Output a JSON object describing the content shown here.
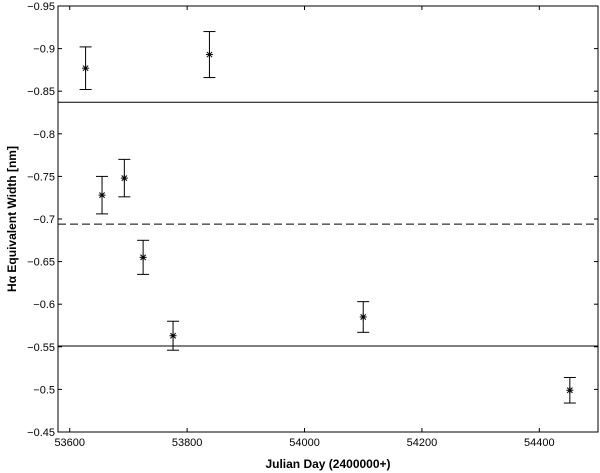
{
  "chart_data": {
    "type": "scatter",
    "xlabel": "Julian Day (2400000+)",
    "ylabel": "Hα Equivalent Width [nm]",
    "xlim": [
      53580,
      54500
    ],
    "ylim": [
      -0.45,
      -0.95
    ],
    "y_reversed": true,
    "grid": false,
    "x_ticks": [
      53600,
      53800,
      54000,
      54200,
      54400
    ],
    "x_tick_labels": [
      "53600",
      "53800",
      "54000",
      "54200",
      "54400"
    ],
    "y_ticks": [
      -0.95,
      -0.9,
      -0.85,
      -0.8,
      -0.75,
      -0.7,
      -0.65,
      -0.6,
      -0.55,
      -0.5,
      -0.45
    ],
    "y_tick_labels": [
      "−0.95",
      "−0.9",
      "−0.85",
      "−0.8",
      "−0.75",
      "−0.7",
      "−0.65",
      "−0.6",
      "−0.55",
      "−0.5",
      "−0.45"
    ],
    "marker": "asterisk",
    "series": [
      {
        "x": [
          53627,
          53655,
          53693,
          53725,
          53776,
          53838,
          54100,
          54452
        ],
        "y": [
          -0.877,
          -0.728,
          -0.748,
          -0.655,
          -0.563,
          -0.893,
          -0.585,
          -0.499
        ],
        "err": [
          0.025,
          0.022,
          0.022,
          0.02,
          0.017,
          0.027,
          0.018,
          0.015
        ]
      }
    ],
    "reference_lines": [
      {
        "y": -0.837,
        "style": "solid"
      },
      {
        "y": -0.694,
        "style": "dashed"
      },
      {
        "y": -0.551,
        "style": "solid"
      }
    ]
  }
}
